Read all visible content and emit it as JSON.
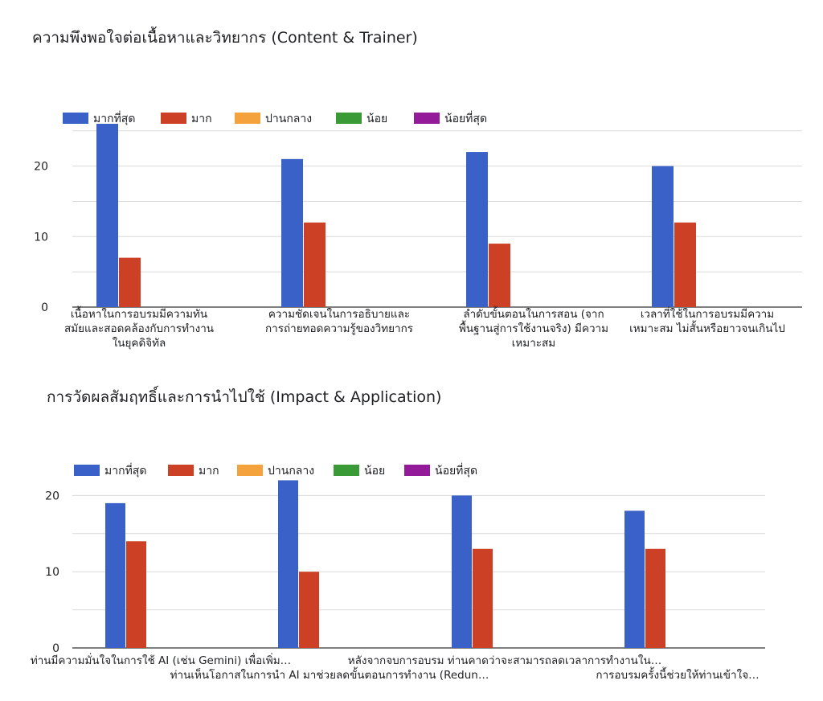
{
  "chart_data": [
    {
      "type": "bar",
      "title": "ความพึงพอใจต่อเนื้อหาและวิทยากร (Content & Trainer)",
      "legend": [
        {
          "name": "มากที่สุด",
          "color": "#3a61c8"
        },
        {
          "name": "มาก",
          "color": "#cc4125"
        },
        {
          "name": "ปานกลาง",
          "color": "#f4a23b"
        },
        {
          "name": "น้อย",
          "color": "#3a9a36"
        },
        {
          "name": "น้อยที่สุด",
          "color": "#931a99"
        }
      ],
      "legend_position": "top-left",
      "yticks": [
        "0",
        "10",
        "20"
      ],
      "ylim": [
        0,
        26
      ],
      "categories": [
        [
          "เนื้อหาในการอบรมมีความทัน",
          "สมัยและสอดคล้องกับการทำงาน",
          "ในยุคดิจิทัล"
        ],
        [
          "ความชัดเจนในการอธิบายและ",
          "การถ่ายทอดความรู้ของวิทยากร"
        ],
        [
          "ลำดับขั้นตอนในการสอน (จาก",
          "พื้นฐานสู่การใช้งานจริง) มีความ",
          "เหมาะสม"
        ],
        [
          "เวลาที่ใช้ในการอบรมมีความ",
          "เหมาะสม ไม่สั้นหรือยาวจนเกินไป"
        ]
      ],
      "series": [
        {
          "name": "มากที่สุด",
          "values": [
            26,
            21,
            22,
            20
          ]
        },
        {
          "name": "มาก",
          "values": [
            7,
            12,
            9,
            12
          ]
        },
        {
          "name": "ปานกลาง",
          "values": [
            0,
            0,
            0,
            0
          ]
        },
        {
          "name": "น้อย",
          "values": [
            0,
            0,
            0,
            0
          ]
        },
        {
          "name": "น้อยที่สุด",
          "values": [
            0,
            0,
            0,
            0
          ]
        }
      ]
    },
    {
      "type": "bar",
      "title": "การวัดผลสัมฤทธิ์และการนำไปใช้ (Impact & Application)",
      "legend": [
        {
          "name": "มากที่สุด",
          "color": "#3a61c8"
        },
        {
          "name": "มาก",
          "color": "#cc4125"
        },
        {
          "name": "ปานกลาง",
          "color": "#f4a23b"
        },
        {
          "name": "น้อย",
          "color": "#3a9a36"
        },
        {
          "name": "น้อยที่สุด",
          "color": "#931a99"
        }
      ],
      "legend_position": "top-left",
      "yticks": [
        "0",
        "10",
        "20"
      ],
      "ylim": [
        0,
        22
      ],
      "categories": [
        [
          "ท่านมีความมั่นใจในการใช้ AI (เช่น Gemini) เพื่อเพิ่ม…"
        ],
        [
          "ท่านเห็นโอกาสในการนำ AI มาช่วยลดขั้นตอนการทำงาน (Redun…"
        ],
        [
          "หลังจากจบการอบรม ท่านคาดว่าจะสามารถลดเวลาการทำงานใน…"
        ],
        [
          "การอบรมครั้งนี้ช่วยให้ท่านเข้าใจ…"
        ]
      ],
      "series": [
        {
          "name": "มากที่สุด",
          "values": [
            19,
            22,
            20,
            18
          ]
        },
        {
          "name": "มาก",
          "values": [
            14,
            10,
            13,
            13
          ]
        },
        {
          "name": "ปานกลาง",
          "values": [
            0,
            0,
            0,
            0
          ]
        },
        {
          "name": "น้อย",
          "values": [
            0,
            0,
            0,
            0
          ]
        },
        {
          "name": "น้อยที่สุด",
          "values": [
            0,
            0,
            0,
            0
          ]
        }
      ]
    }
  ]
}
